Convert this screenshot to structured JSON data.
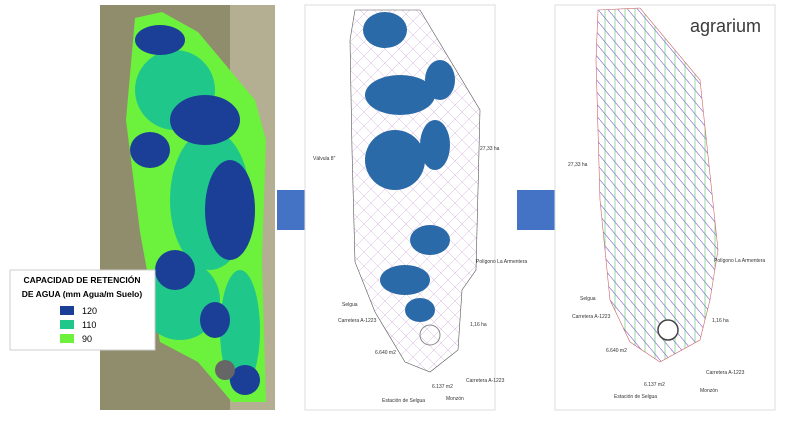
{
  "legend": {
    "title": [
      "CAPACIDAD DE RETENCIÓN",
      "DE AGUA (mm Agua/m Suelo)"
    ],
    "items": [
      {
        "label": 120,
        "color": "#1b3f96"
      },
      {
        "label": 110,
        "color": "#1fc88a"
      },
      {
        "label": 90,
        "color": "#6cf23c"
      }
    ]
  },
  "plan": {
    "labels": [
      "Válvula 8\"",
      "27,33 ha",
      "Polígono La Armentera",
      "Selgua",
      "Carretera A-1223",
      "1,16 ha",
      "6.640 m2",
      "6.137 m2",
      "Carretera A-1223",
      "Estación de Selgua",
      "Monzón"
    ]
  },
  "design": {
    "logo": "agrarium",
    "labels": [
      "27,33 ha",
      "Polígono La Armentera",
      "Selgua",
      "Carretera A-1223",
      "1,16 ha",
      "6.640 m2",
      "Carretera A-1223",
      "6.137 m2",
      "Estación de Selgua",
      "Monzón"
    ]
  }
}
